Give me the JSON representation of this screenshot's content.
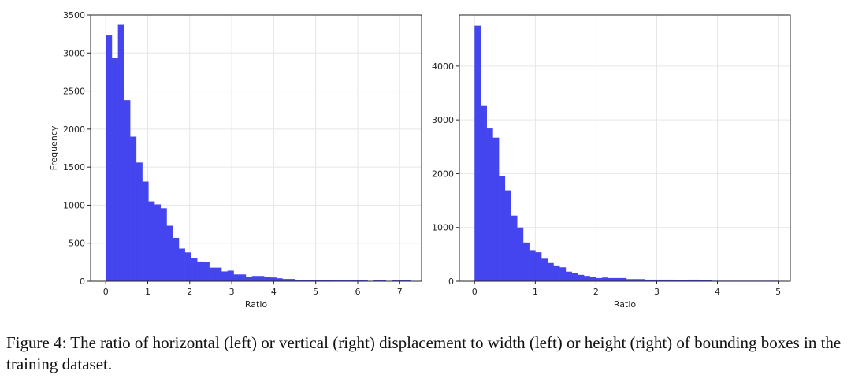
{
  "caption": "Figure 4: The ratio of horizontal (left) or vertical (right) displacement to width (left) or height (right) of bounding boxes in the training dataset.",
  "colors": {
    "bar": "#4545f0",
    "grid": "#e6e6e6",
    "axis": "#222222"
  },
  "chart_data": [
    {
      "type": "bar",
      "subtype": "histogram",
      "title": "",
      "xlabel": "Ratio",
      "ylabel": "Frequency",
      "xlim": [
        -0.36,
        7.52
      ],
      "ylim": [
        0,
        3500
      ],
      "xticks": [
        0,
        1,
        2,
        3,
        4,
        5,
        6,
        7
      ],
      "yticks": [
        0,
        500,
        1000,
        1500,
        2000,
        2500,
        3000,
        3500
      ],
      "grid": true,
      "bin_start": 0,
      "bin_width": 0.145,
      "values": [
        3230,
        2940,
        3370,
        2380,
        1900,
        1560,
        1310,
        1050,
        1010,
        960,
        730,
        570,
        430,
        380,
        300,
        260,
        250,
        180,
        180,
        130,
        140,
        90,
        90,
        60,
        70,
        70,
        60,
        50,
        40,
        30,
        30,
        20,
        20,
        20,
        20,
        20,
        20,
        10,
        10,
        10,
        10,
        10,
        10,
        5,
        10,
        10,
        5,
        10,
        10,
        10,
        5
      ]
    },
    {
      "type": "bar",
      "subtype": "histogram",
      "title": "",
      "xlabel": "Ratio",
      "ylabel": "",
      "xlim": [
        -0.25,
        5.2
      ],
      "ylim": [
        0,
        4950
      ],
      "xticks": [
        0,
        1,
        2,
        3,
        4,
        5
      ],
      "yticks": [
        0,
        1000,
        2000,
        3000,
        4000
      ],
      "grid": true,
      "bin_start": 0,
      "bin_width": 0.1,
      "values": [
        4750,
        3270,
        2840,
        2670,
        1960,
        1690,
        1220,
        1000,
        720,
        580,
        540,
        420,
        340,
        280,
        260,
        180,
        150,
        120,
        100,
        80,
        60,
        70,
        60,
        60,
        60,
        40,
        40,
        40,
        30,
        30,
        30,
        30,
        30,
        20,
        20,
        30,
        30,
        20,
        20,
        10,
        10,
        10,
        10,
        10,
        10,
        10,
        10,
        10,
        10,
        10
      ]
    }
  ]
}
